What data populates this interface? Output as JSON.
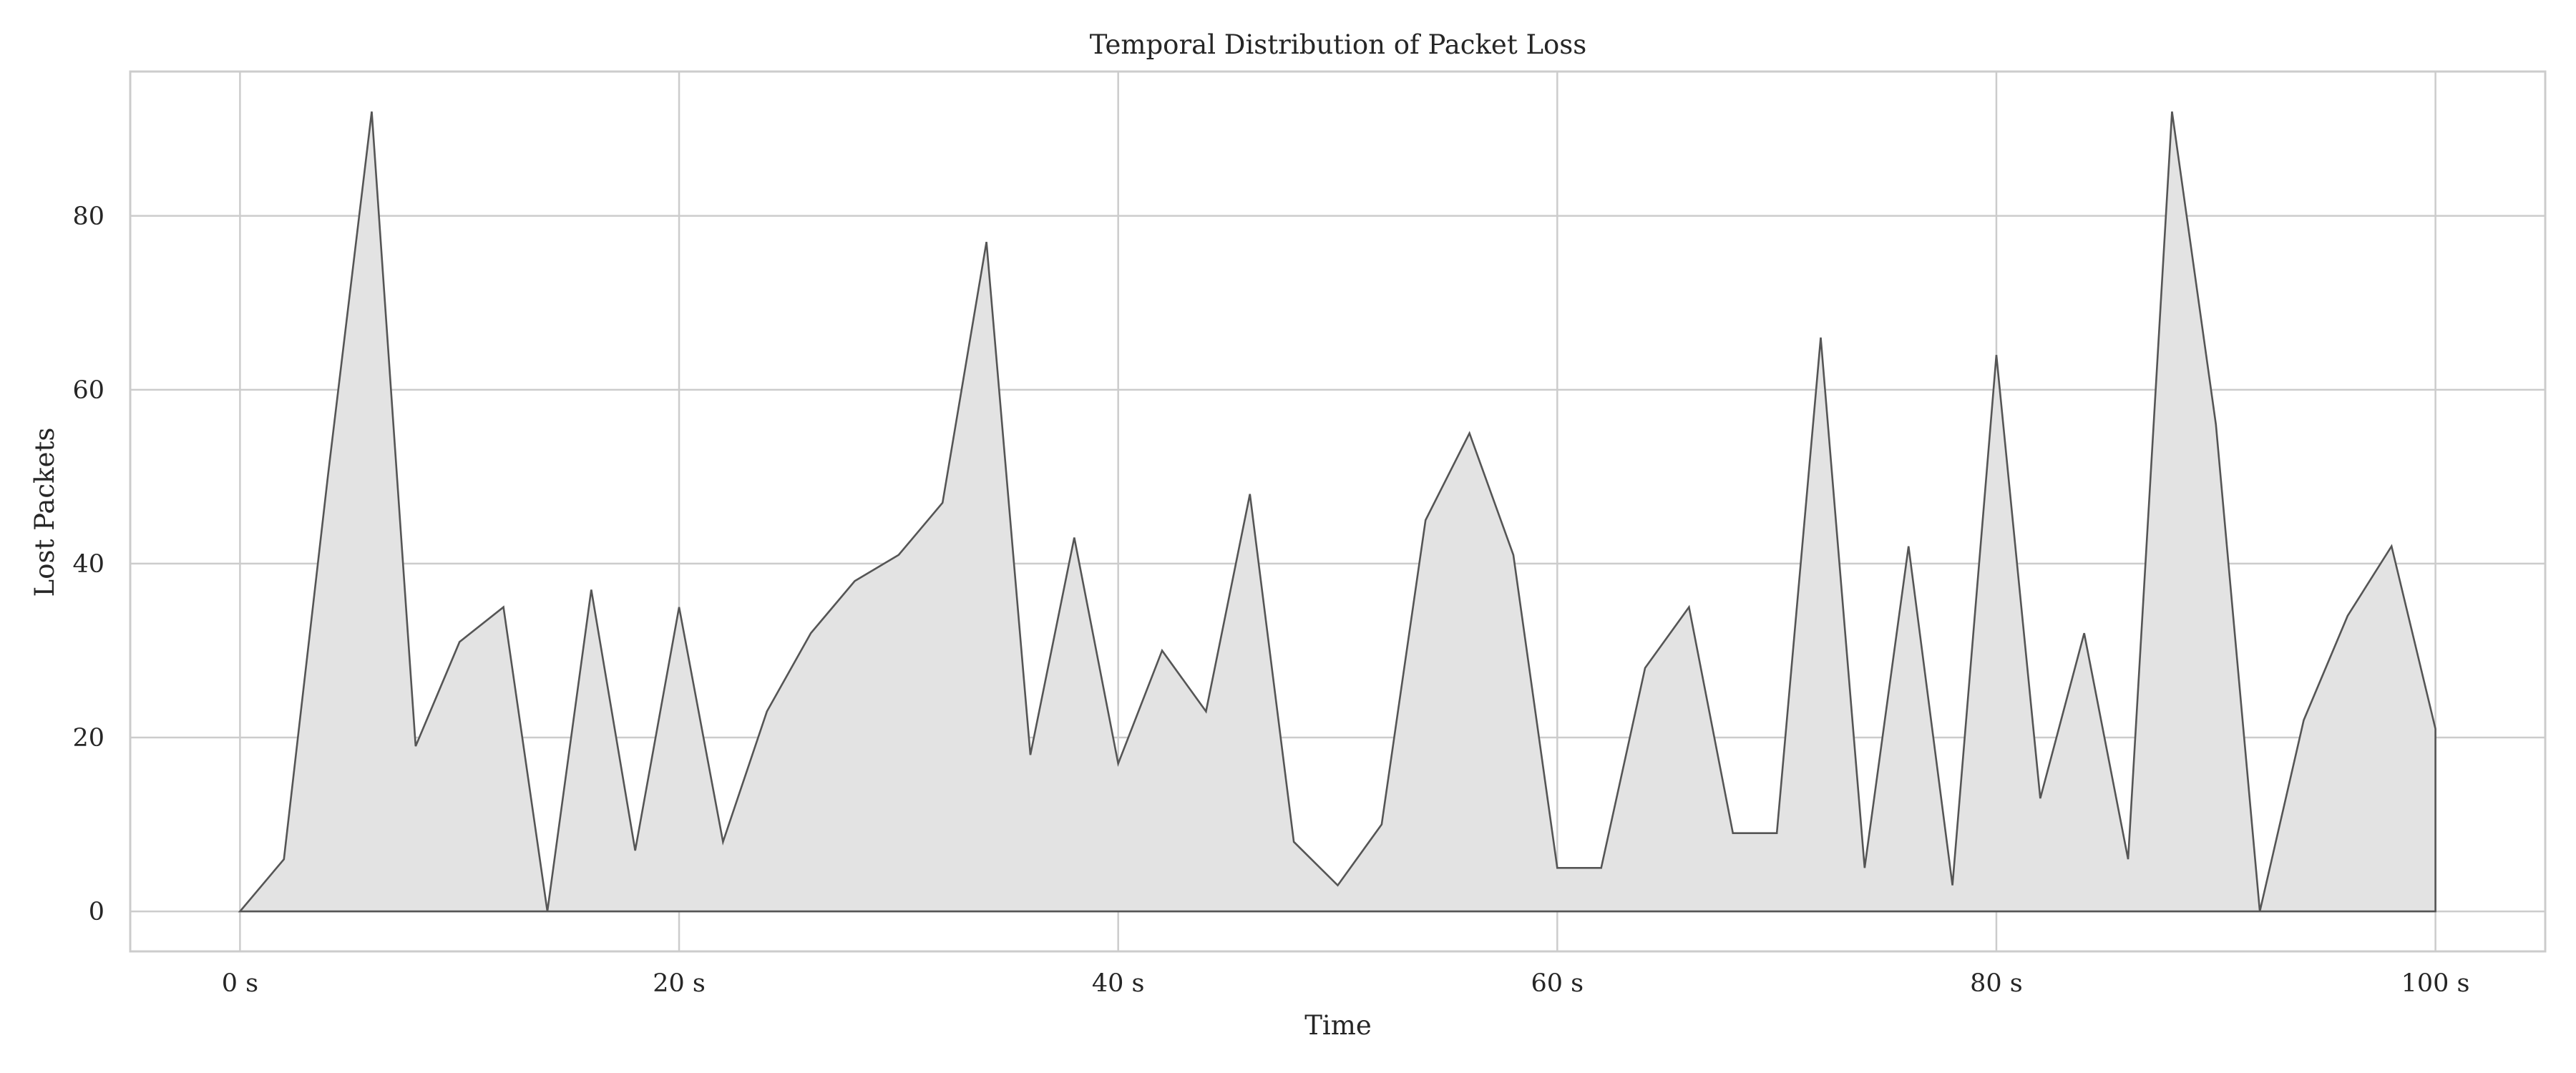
{
  "chart_data": {
    "type": "area",
    "title": "Temporal Distribution of Packet Loss",
    "xlabel": "Time",
    "ylabel": "Lost Packets",
    "xlim": [
      -5,
      105
    ],
    "ylim": [
      -4.6,
      96.6
    ],
    "grid": true,
    "x_ticks": [
      {
        "value": 0,
        "label": "0 s"
      },
      {
        "value": 20,
        "label": "20 s"
      },
      {
        "value": 40,
        "label": "40 s"
      },
      {
        "value": 60,
        "label": "60 s"
      },
      {
        "value": 80,
        "label": "80 s"
      },
      {
        "value": 100,
        "label": "100 s"
      }
    ],
    "y_ticks": [
      {
        "value": 0,
        "label": "0"
      },
      {
        "value": 20,
        "label": "20"
      },
      {
        "value": 40,
        "label": "40"
      },
      {
        "value": 60,
        "label": "60"
      },
      {
        "value": 80,
        "label": "80"
      }
    ],
    "colors": {
      "line": "#555555",
      "fill": "#e3e3e3",
      "grid": "#cccccc"
    },
    "x": [
      0,
      2,
      4,
      6,
      8,
      10,
      12,
      14,
      16,
      18,
      20,
      22,
      24,
      26,
      28,
      30,
      32,
      34,
      36,
      38,
      40,
      42,
      44,
      46,
      48,
      50,
      52,
      54,
      56,
      58,
      60,
      62,
      64,
      66,
      68,
      70,
      72,
      74,
      76,
      78,
      80,
      82,
      84,
      86,
      88,
      90,
      92,
      94,
      96,
      98,
      100
    ],
    "series": [
      {
        "values": [
          0,
          6,
          50,
          92,
          19,
          31,
          35,
          0,
          37,
          7,
          35,
          8,
          23,
          32,
          38,
          41,
          47,
          77,
          18,
          43,
          17,
          30,
          23,
          48,
          8,
          3,
          10,
          45,
          55,
          41,
          5,
          5,
          28,
          35,
          9,
          9,
          66,
          5,
          42,
          3,
          64,
          13,
          32,
          6,
          92,
          56,
          0,
          22,
          34,
          42,
          21
        ]
      }
    ]
  }
}
